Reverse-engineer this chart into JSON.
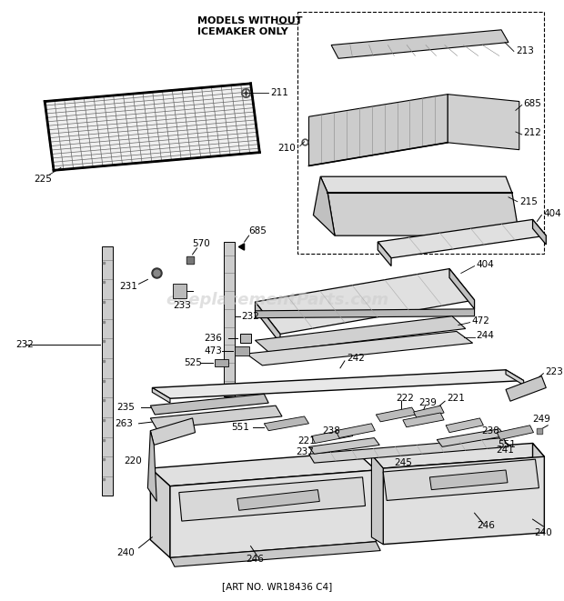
{
  "bg": "#ffffff",
  "watermark": "eReplacementParts.com",
  "art_no": "[ART NO. WR18436 C4]",
  "fig_w": 6.2,
  "fig_h": 6.61,
  "dpi": 100,
  "gray_light": "#d8d8d8",
  "gray_mid": "#b8b8b8",
  "gray_dark": "#888888",
  "black": "#000000",
  "white": "#ffffff"
}
